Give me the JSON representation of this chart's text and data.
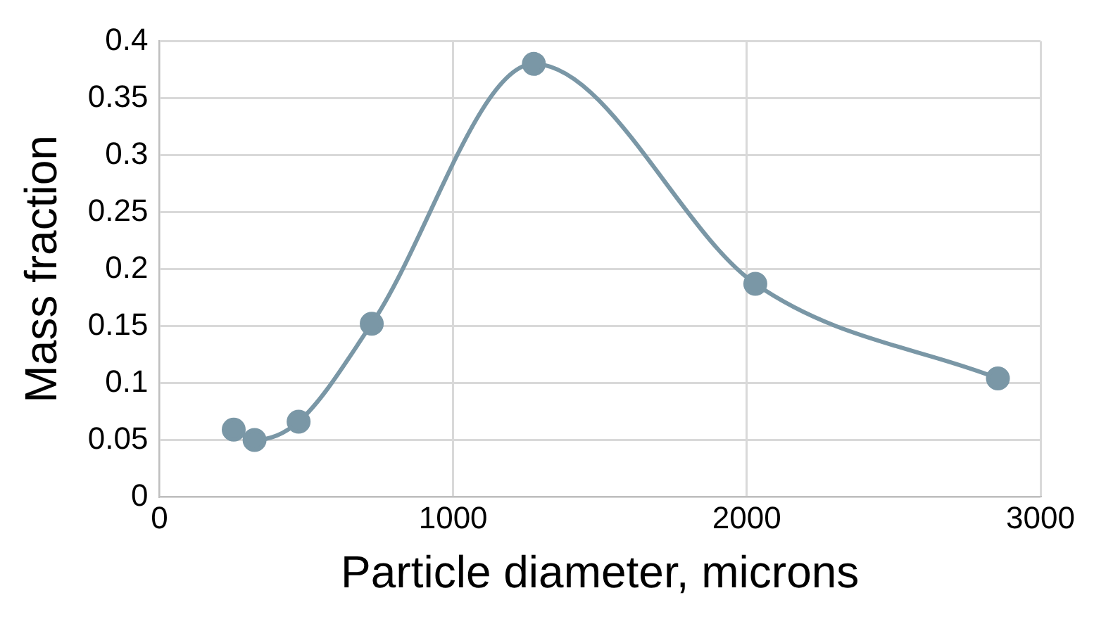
{
  "chart_data": {
    "type": "line",
    "xlabel": "Particle diameter, microns",
    "ylabel": "Mass fraction",
    "x": [
      253,
      324,
      474,
      723,
      1275,
      2029,
      2855
    ],
    "series": [
      {
        "color": "#7a97a6",
        "values": [
          0.059,
          0.05,
          0.066,
          0.152,
          0.38,
          0.187,
          0.104
        ]
      }
    ],
    "xlim": [
      0,
      3000
    ],
    "xticks": [
      0,
      1000,
      2000,
      3000
    ],
    "ylim": [
      0,
      0.4
    ],
    "yticks": [
      0,
      0.05,
      0.1,
      0.15,
      0.2,
      0.25,
      0.3,
      0.35,
      0.4
    ],
    "grid": true,
    "marker": "circle",
    "line_style": "solid"
  }
}
